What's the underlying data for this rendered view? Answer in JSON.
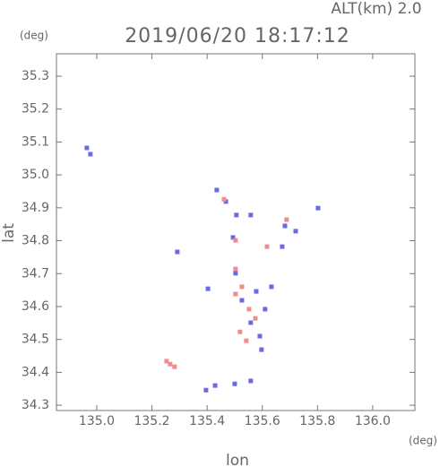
{
  "chart_data": {
    "type": "scatter",
    "title": "2019/06/20 18:17:12",
    "subtitle": "ALT(km) 2.0",
    "x_label": "lon",
    "y_label": "lat",
    "x_unit": "(deg)",
    "y_unit": "(deg)",
    "xlim": [
      134.854,
      136.153
    ],
    "ylim": [
      34.284,
      35.368
    ],
    "xticks": [
      {
        "value": 135.0,
        "label": "135.0"
      },
      135.2,
      135.4,
      135.6,
      135.8,
      {
        "value": 136.0,
        "label": "136.0"
      }
    ],
    "yticks": [
      35.3,
      35.2,
      35.1,
      {
        "value": 35.0,
        "label": "35.0"
      },
      34.9,
      34.8,
      34.7,
      34.6,
      34.5,
      34.4,
      34.3
    ],
    "series": [
      {
        "color": "#6a6ae6",
        "x": [
          134.964,
          134.977,
          135.435,
          135.468,
          135.506,
          135.558,
          135.682,
          135.672,
          135.494,
          135.403,
          135.503,
          135.578,
          135.633,
          135.61,
          135.526,
          135.558,
          135.591,
          135.597,
          135.429,
          135.5,
          135.396,
          135.558,
          135.292,
          135.721,
          135.802
        ],
        "values": [
          35.082,
          35.063,
          34.954,
          34.919,
          34.878,
          34.878,
          34.845,
          34.782,
          34.81,
          34.654,
          34.701,
          34.646,
          34.66,
          34.592,
          34.619,
          34.551,
          34.51,
          34.469,
          34.36,
          34.365,
          34.346,
          34.374,
          34.766,
          34.829,
          34.899
        ]
      },
      {
        "color": "#f08c8c",
        "x": [
          135.253,
          135.266,
          135.282,
          135.503,
          135.526,
          135.552,
          135.575,
          135.542,
          135.503,
          135.617,
          135.503,
          135.461,
          135.688,
          135.519
        ],
        "values": [
          34.434,
          34.425,
          34.417,
          34.714,
          34.66,
          34.592,
          34.564,
          34.496,
          34.638,
          34.782,
          34.801,
          34.926,
          34.864,
          34.523
        ]
      }
    ]
  }
}
